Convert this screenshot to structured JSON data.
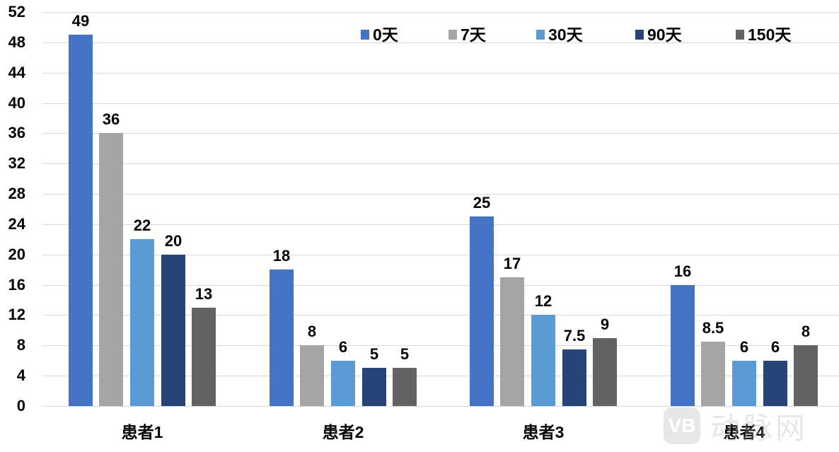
{
  "chart_data": {
    "type": "bar",
    "title": "",
    "xlabel": "",
    "ylabel": "",
    "ylim": [
      0,
      52
    ],
    "yticks": [
      0,
      4,
      8,
      12,
      16,
      20,
      24,
      28,
      32,
      36,
      40,
      44,
      48,
      52
    ],
    "grid": true,
    "legend_position": "top-right",
    "categories": [
      "患者1",
      "患者2",
      "患者3",
      "患者4"
    ],
    "series": [
      {
        "name": "0天",
        "color": "#4472c4",
        "values": [
          49,
          18,
          25,
          16
        ]
      },
      {
        "name": "7天",
        "color": "#a5a5a5",
        "values": [
          36,
          8,
          17,
          8.5
        ]
      },
      {
        "name": "30天",
        "color": "#5b9bd5",
        "values": [
          22,
          6,
          12,
          6
        ]
      },
      {
        "name": "90天",
        "color": "#264478",
        "values": [
          20,
          5,
          7.5,
          6
        ]
      },
      {
        "name": "150天",
        "color": "#636363",
        "values": [
          13,
          5,
          9,
          8
        ]
      }
    ],
    "data_labels": [
      [
        "49",
        "36",
        "22",
        "20",
        "13"
      ],
      [
        "18",
        "8",
        "6",
        "5",
        "5"
      ],
      [
        "25",
        "17",
        "12",
        "7.5",
        "9"
      ],
      [
        "16",
        "8.5",
        "6",
        "6",
        "8"
      ]
    ]
  },
  "watermark": {
    "logo_text": "VB",
    "text": "动脉网"
  }
}
